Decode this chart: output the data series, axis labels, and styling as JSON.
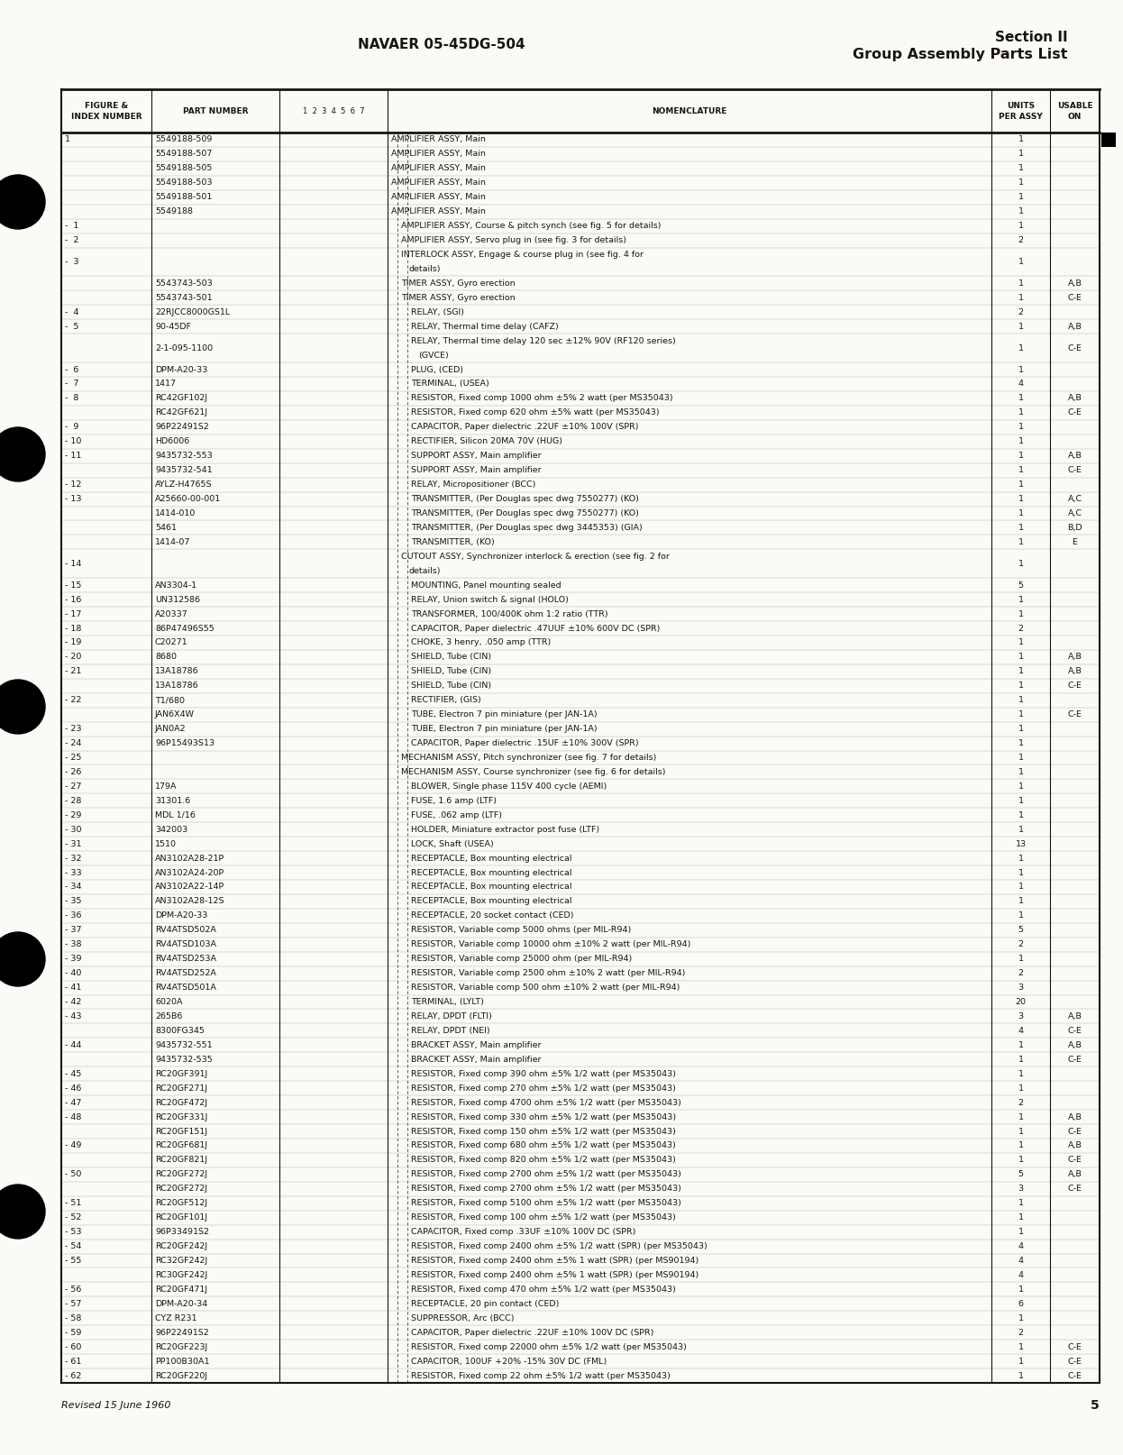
{
  "title_left": "NAVAER 05-45DG-504",
  "title_right_line1": "Section II",
  "title_right_line2": "Group Assembly Parts List",
  "page_number": "5",
  "revised": "Revised 15 June 1960",
  "bg_color": "#fafaf7",
  "text_color": "#1a1410",
  "line_color": "#1a1410",
  "rows": [
    [
      "1",
      "5549188-509",
      "0",
      "AMPLIFIER ASSY, Main",
      "1",
      ""
    ],
    [
      "",
      "5549188-507",
      "0",
      "AMPLIFIER ASSY, Main",
      "1",
      ""
    ],
    [
      "",
      "5549188-505",
      "0",
      "AMPLIFIER ASSY, Main",
      "1",
      ""
    ],
    [
      "",
      "5549188-503",
      "0",
      "AMPLIFIER ASSY, Main",
      "1",
      ""
    ],
    [
      "",
      "5549188-501",
      "0",
      "AMPLIFIER ASSY, Main",
      "1",
      ""
    ],
    [
      "",
      "5549188",
      "0",
      "AMPLIFIER ASSY, Main",
      "1",
      ""
    ],
    [
      "-  1",
      "",
      "1",
      "AMPLIFIER ASSY, Course & pitch synch (see fig. 5 for details)",
      "1",
      ""
    ],
    [
      "-  2",
      "",
      "1",
      "AMPLIFIER ASSY, Servo plug in (see fig. 3 for details)",
      "2",
      ""
    ],
    [
      "-  3",
      "",
      "1",
      "INTERLOCK ASSY, Engage & course plug in (see fig. 4 for\n        details)",
      "1",
      ""
    ],
    [
      "",
      "5543743-503",
      "1",
      "TIMER ASSY, Gyro erection",
      "1",
      "A,B"
    ],
    [
      "",
      "5543743-501",
      "1",
      "TIMER ASSY, Gyro erection",
      "1",
      "C-E"
    ],
    [
      "-  4",
      "22RJCC8000GS1L",
      "2",
      "RELAY, (SGI)",
      "2",
      ""
    ],
    [
      "-  5",
      "90-45DF",
      "2",
      "RELAY, Thermal time delay (CAFZ)",
      "1",
      "A,B"
    ],
    [
      "",
      "2-1-095-1100",
      "2",
      "RELAY, Thermal time delay 120 sec ±12% 90V (RF120 series)\n           (GVCE)",
      "1",
      "C-E"
    ],
    [
      "-  6",
      "DPM-A20-33",
      "2",
      "PLUG, (CED)",
      "1",
      ""
    ],
    [
      "-  7",
      "1417",
      "2",
      "TERMINAL, (USEA)",
      "4",
      ""
    ],
    [
      "-  8",
      "RC42GF102J",
      "2",
      "RESISTOR, Fixed comp 1000 ohm ±5% 2 watt (per MS35043)",
      "1",
      "A,B"
    ],
    [
      "",
      "RC42GF621J",
      "2",
      "RESISTOR, Fixed comp 620 ohm ±5% watt (per MS35043)",
      "1",
      "C-E"
    ],
    [
      "-  9",
      "96P22491S2",
      "2",
      "CAPACITOR, Paper dielectric .22UF ±10% 100V (SPR)",
      "1",
      ""
    ],
    [
      "- 10",
      "HD6006",
      "2",
      "RECTIFIER, Silicon 20MA 70V (HUG)",
      "1",
      ""
    ],
    [
      "- 11",
      "9435732-553",
      "2",
      "SUPPORT ASSY, Main amplifier",
      "1",
      "A,B"
    ],
    [
      "",
      "9435732-541",
      "2",
      "SUPPORT ASSY, Main amplifier",
      "1",
      "C-E"
    ],
    [
      "- 12",
      "AYLZ-H4765S",
      "2",
      "RELAY, Micropositioner (BCC)",
      "1",
      ""
    ],
    [
      "- 13",
      "A25660-00-001",
      "2",
      "TRANSMITTER, (Per Douglas spec dwg 7550277) (KO)",
      "1",
      "A,C"
    ],
    [
      "",
      "1414-010",
      "2",
      "TRANSMITTER, (Per Douglas spec dwg 7550277) (KO)",
      "1",
      "A,C"
    ],
    [
      "",
      "5461",
      "2",
      "TRANSMITTER, (Per Douglas spec dwg 3445353) (GIA)",
      "1",
      "B,D"
    ],
    [
      "",
      "1414-07",
      "2",
      "TRANSMITTER, (KO)",
      "1",
      "E"
    ],
    [
      "- 14",
      "",
      "1",
      "CUTOUT ASSY, Synchronizer interlock & erection (see fig. 2 for\n        details)",
      "1",
      ""
    ],
    [
      "- 15",
      "AN3304-1",
      "2",
      "MOUNTING, Panel mounting sealed",
      "5",
      ""
    ],
    [
      "- 16",
      "UN312586",
      "2",
      "RELAY, Union switch & signal (HOLO)",
      "1",
      ""
    ],
    [
      "- 17",
      "A20337",
      "2",
      "TRANSFORMER, 100/400K ohm 1:2 ratio (TTR)",
      "1",
      ""
    ],
    [
      "- 18",
      "86P47496S55",
      "2",
      "CAPACITOR, Paper dielectric .47UUF ±10% 600V DC (SPR)",
      "2",
      ""
    ],
    [
      "- 19",
      "C20271",
      "2",
      "CHOKE, 3 henry, .050 amp (TTR)",
      "1",
      ""
    ],
    [
      "- 20",
      "8680",
      "2",
      "SHIELD, Tube (CIN)",
      "1",
      "A,B"
    ],
    [
      "- 21",
      "13A18786",
      "2",
      "SHIELD, Tube (CIN)",
      "1",
      "A,B"
    ],
    [
      "",
      "13A18786",
      "2",
      "SHIELD, Tube (CIN)",
      "1",
      "C-E"
    ],
    [
      "- 22",
      "T1/680",
      "2",
      "RECTIFIER, (GIS)",
      "1",
      ""
    ],
    [
      "",
      "JAN6X4W",
      "2",
      "TUBE, Electron 7 pin miniature (per JAN-1A)",
      "1",
      "C-E"
    ],
    [
      "- 23",
      "JAN0A2",
      "2",
      "TUBE, Electron 7 pin miniature (per JAN-1A)",
      "1",
      ""
    ],
    [
      "- 24",
      "96P15493S13",
      "2",
      "CAPACITOR, Paper dielectric .15UF ±10% 300V (SPR)",
      "1",
      ""
    ],
    [
      "- 25",
      "",
      "1",
      "MECHANISM ASSY, Pitch synchronizer (see fig. 7 for details)",
      "1",
      ""
    ],
    [
      "- 26",
      "",
      "1",
      "MECHANISM ASSY, Course synchronizer (see fig. 6 for details)",
      "1",
      ""
    ],
    [
      "- 27",
      "179A",
      "2",
      "BLOWER, Single phase 115V 400 cycle (AEMI)",
      "1",
      ""
    ],
    [
      "- 28",
      "31301.6",
      "2",
      "FUSE, 1.6 amp (LTF)",
      "1",
      ""
    ],
    [
      "- 29",
      "MDL 1/16",
      "2",
      "FUSE, .062 amp (LTF)",
      "1",
      ""
    ],
    [
      "- 30",
      "342003",
      "2",
      "HOLDER, Miniature extractor post fuse (LTF)",
      "1",
      ""
    ],
    [
      "- 31",
      "1510",
      "2",
      "LOCK, Shaft (USEA)",
      "13",
      ""
    ],
    [
      "- 32",
      "AN3102A28-21P",
      "2",
      "RECEPTACLE, Box mounting electrical",
      "1",
      ""
    ],
    [
      "- 33",
      "AN3102A24-20P",
      "2",
      "RECEPTACLE, Box mounting electrical",
      "1",
      ""
    ],
    [
      "- 34",
      "AN3102A22-14P",
      "2",
      "RECEPTACLE, Box mounting electrical",
      "1",
      ""
    ],
    [
      "- 35",
      "AN3102A28-12S",
      "2",
      "RECEPTACLE, Box mounting electrical",
      "1",
      ""
    ],
    [
      "- 36",
      "DPM-A20-33",
      "2",
      "RECEPTACLE, 20 socket contact (CED)",
      "1",
      ""
    ],
    [
      "- 37",
      "RV4ATSD502A",
      "2",
      "RESISTOR, Variable comp 5000 ohms (per MIL-R94)",
      "5",
      ""
    ],
    [
      "- 38",
      "RV4ATSD103A",
      "2",
      "RESISTOR, Variable comp 10000 ohm ±10% 2 watt (per MIL-R94)",
      "2",
      ""
    ],
    [
      "- 39",
      "RV4ATSD253A",
      "2",
      "RESISTOR, Variable comp 25000 ohm (per MIL-R94)",
      "1",
      ""
    ],
    [
      "- 40",
      "RV4ATSD252A",
      "2",
      "RESISTOR, Variable comp 2500 ohm ±10% 2 watt (per MIL-R94)",
      "2",
      ""
    ],
    [
      "- 41",
      "RV4ATSD501A",
      "2",
      "RESISTOR, Variable comp 500 ohm ±10% 2 watt (per MIL-R94)",
      "3",
      ""
    ],
    [
      "- 42",
      "6020A",
      "2",
      "TERMINAL, (LYLT)",
      "20",
      ""
    ],
    [
      "- 43",
      "265B6",
      "2",
      "RELAY, DPDT (FLTI)",
      "3",
      "A,B"
    ],
    [
      "",
      "8300FG345",
      "2",
      "RELAY, DPDT (NEI)",
      "4",
      "C-E"
    ],
    [
      "- 44",
      "9435732-551",
      "2",
      "BRACKET ASSY, Main amplifier",
      "1",
      "A,B"
    ],
    [
      "",
      "9435732-535",
      "2",
      "BRACKET ASSY, Main amplifier",
      "1",
      "C-E"
    ],
    [
      "- 45",
      "RC20GF391J",
      "2",
      "RESISTOR, Fixed comp 390 ohm ±5% 1/2 watt (per MS35043)",
      "1",
      ""
    ],
    [
      "- 46",
      "RC20GF271J",
      "2",
      "RESISTOR, Fixed comp 270 ohm ±5% 1/2 watt (per MS35043)",
      "1",
      ""
    ],
    [
      "- 47",
      "RC20GF472J",
      "2",
      "RESISTOR, Fixed comp 4700 ohm ±5% 1/2 watt (per MS35043)",
      "2",
      ""
    ],
    [
      "- 48",
      "RC20GF331J",
      "2",
      "RESISTOR, Fixed comp 330 ohm ±5% 1/2 watt (per MS35043)",
      "1",
      "A,B"
    ],
    [
      "",
      "RC20GF151J",
      "2",
      "RESISTOR, Fixed comp 150 ohm ±5% 1/2 watt (per MS35043)",
      "1",
      "C-E"
    ],
    [
      "- 49",
      "RC20GF681J",
      "2",
      "RESISTOR, Fixed comp 680 ohm ±5% 1/2 watt (per MS35043)",
      "1",
      "A,B"
    ],
    [
      "",
      "RC20GF821J",
      "2",
      "RESISTOR, Fixed comp 820 ohm ±5% 1/2 watt (per MS35043)",
      "1",
      "C-E"
    ],
    [
      "- 50",
      "RC20GF272J",
      "2",
      "RESISTOR, Fixed comp 2700 ohm ±5% 1/2 watt (per MS35043)",
      "5",
      "A,B"
    ],
    [
      "",
      "RC20GF272J",
      "2",
      "RESISTOR, Fixed comp 2700 ohm ±5% 1/2 watt (per MS35043)",
      "3",
      "C-E"
    ],
    [
      "- 51",
      "RC20GF512J",
      "2",
      "RESISTOR, Fixed comp 5100 ohm ±5% 1/2 watt (per MS35043)",
      "1",
      ""
    ],
    [
      "- 52",
      "RC20GF101J",
      "2",
      "RESISTOR, Fixed comp 100 ohm ±5% 1/2 watt (per MS35043)",
      "1",
      ""
    ],
    [
      "- 53",
      "96P33491S2",
      "2",
      "CAPACITOR, Fixed comp .33UF ±10% 100V DC (SPR)",
      "1",
      ""
    ],
    [
      "- 54",
      "RC20GF242J",
      "2",
      "RESISTOR, Fixed comp 2400 ohm ±5% 1/2 watt (SPR) (per MS35043)",
      "4",
      ""
    ],
    [
      "- 55",
      "RC32GF242J",
      "2",
      "RESISTOR, Fixed comp 2400 ohm ±5% 1 watt (SPR) (per MS90194)",
      "4",
      ""
    ],
    [
      "",
      "RC30GF242J",
      "2",
      "RESISTOR, Fixed comp 2400 ohm ±5% 1 watt (SPR) (per MS90194)",
      "4",
      ""
    ],
    [
      "- 56",
      "RC20GF471J",
      "2",
      "RESISTOR, Fixed comp 470 ohm ±5% 1/2 watt (per MS35043)",
      "1",
      ""
    ],
    [
      "- 57",
      "DPM-A20-34",
      "2",
      "RECEPTACLE, 20 pin contact (CED)",
      "6",
      ""
    ],
    [
      "- 58",
      "CYZ R231",
      "2",
      "SUPPRESSOR, Arc (BCC)",
      "1",
      ""
    ],
    [
      "- 59",
      "96P22491S2",
      "2",
      "CAPACITOR, Paper dielectric .22UF ±10% 100V DC (SPR)",
      "2",
      ""
    ],
    [
      "- 60",
      "RC20GF223J",
      "2",
      "RESISTOR, Fixed comp 22000 ohm ±5% 1/2 watt (per MS35043)",
      "1",
      "C-E"
    ],
    [
      "- 61",
      "PP100B30A1",
      "2",
      "CAPACITOR, 100UF +20% -15% 30V DC (FML)",
      "1",
      "C-E"
    ],
    [
      "- 62",
      "RC20GF220J",
      "2",
      "RESISTOR, Fixed comp 22 ohm ±5% 1/2 watt (per MS35043)",
      "1",
      "C-E"
    ]
  ]
}
